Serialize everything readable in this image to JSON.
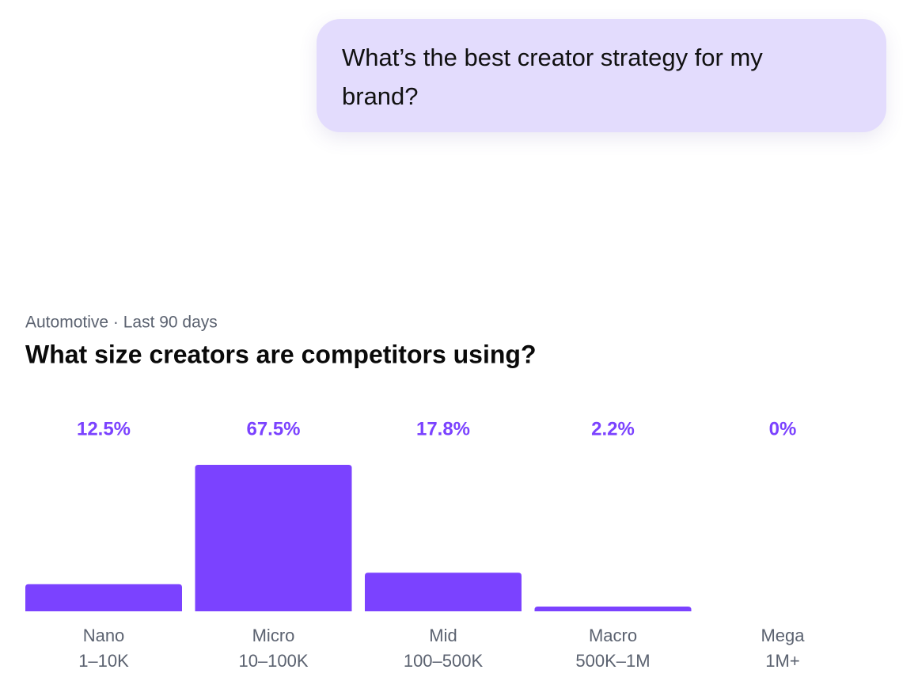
{
  "message": {
    "text": "What’s the best creator strategy for my brand?"
  },
  "chart_data": {
    "type": "bar",
    "subtitle": "Automotive · Last 90 days",
    "title": "What size creators are competitors using?",
    "categories": [
      [
        "Nano",
        "1–10K"
      ],
      [
        "Micro",
        "10–100K"
      ],
      [
        "Mid",
        "100–500K"
      ],
      [
        "Macro",
        "500K–1M"
      ],
      [
        "Mega",
        "1M+"
      ]
    ],
    "values": [
      12.5,
      67.5,
      17.8,
      2.2,
      0
    ],
    "value_labels": [
      "12.5%",
      "67.5%",
      "17.8%",
      "2.2%",
      "0%"
    ],
    "color": "#7b42ff"
  }
}
